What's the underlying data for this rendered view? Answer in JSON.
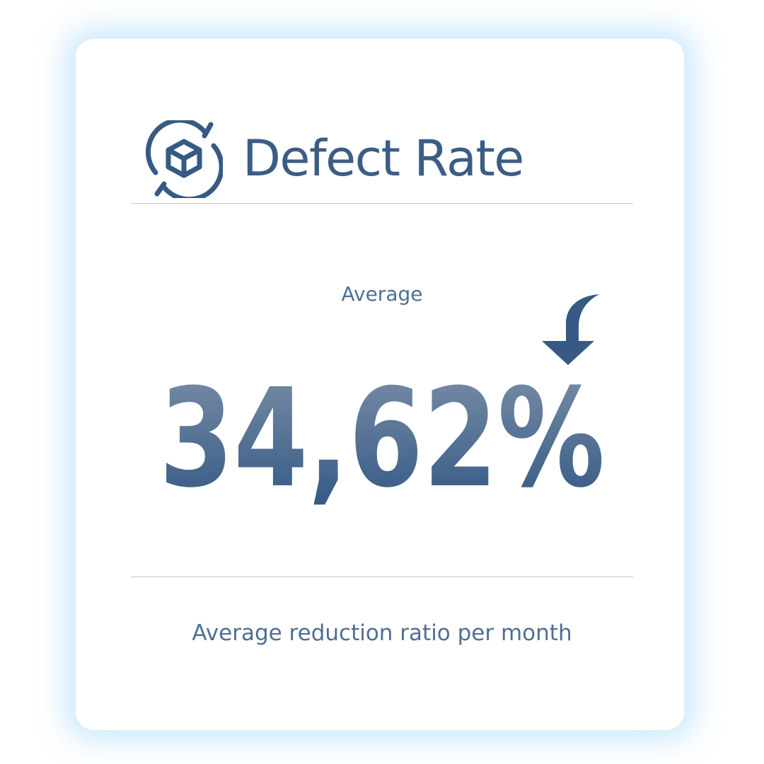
{
  "card": {
    "title": "Defect Rate",
    "icon": "box-refresh-icon",
    "metric_label": "Average",
    "metric_value": "34,62%",
    "trend_icon": "down-arrow-icon",
    "caption": "Average reduction ratio per month"
  },
  "colors": {
    "accent": "#365a83",
    "gradient_top": "#7a8ea6",
    "gradient_bottom": "#2f5582",
    "glow": "#cfe8fb",
    "divider": "#c4c7cc"
  }
}
